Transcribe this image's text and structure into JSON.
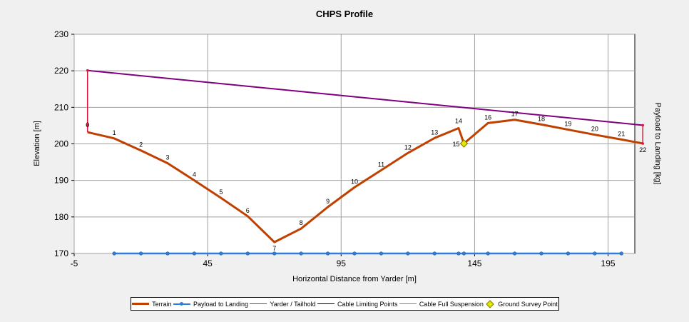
{
  "chart_data": {
    "type": "line",
    "title": "CHPS Profile",
    "xlabel": "Horizontal Distance from Yarder [m]",
    "ylabel": "Elevation [m]",
    "y2label": "Payload to Landing [kg]",
    "xlim": [
      -5,
      205
    ],
    "ylim": [
      170,
      230
    ],
    "xticks": [
      -5,
      45,
      95,
      145,
      195
    ],
    "yticks": [
      170,
      180,
      190,
      200,
      210,
      220,
      230
    ],
    "grid": true,
    "legend_position": "bottom",
    "colors": {
      "terrain": "#c04000",
      "payload": "#2f7fd6",
      "yarder_tailhold": "#dc143c",
      "cable_limiting": "#000000",
      "cable_full_suspension": "#808080",
      "ground_survey": "#e6e600",
      "cable_line": "#800080",
      "grid": "#a0a0a0",
      "plot_bg": "#ffffff"
    },
    "series": [
      {
        "name": "Terrain",
        "x": [
          0,
          10,
          20,
          30,
          40,
          50,
          60,
          70,
          80,
          90,
          100,
          110,
          120,
          130,
          139,
          141,
          150,
          160,
          170,
          180,
          190,
          200,
          208
        ],
        "y": [
          203.2,
          201.5,
          198.2,
          194.7,
          190.0,
          185.2,
          180.2,
          173.1,
          176.8,
          182.7,
          188.1,
          192.8,
          197.5,
          201.6,
          204.3,
          200.1,
          205.7,
          206.6,
          205.3,
          203.9,
          202.5,
          201.2,
          200.1
        ],
        "labels": [
          "0",
          "1",
          "2",
          "3",
          "4",
          "5",
          "6",
          "7",
          "8",
          "9",
          "10",
          "11",
          "12",
          "13",
          "14",
          "15",
          "16",
          "17",
          "18",
          "19",
          "20",
          "21",
          "22"
        ]
      },
      {
        "name": "Payload to Landing",
        "x": [
          10,
          20,
          30,
          40,
          50,
          60,
          70,
          80,
          90,
          100,
          110,
          120,
          130,
          139,
          141,
          150,
          160,
          170,
          180,
          190,
          200
        ],
        "y": [
          170,
          170,
          170,
          170,
          170,
          170,
          170,
          170,
          170,
          170,
          170,
          170,
          170,
          170,
          170,
          170,
          170,
          170,
          170,
          170,
          170
        ]
      },
      {
        "name": "Yarder / Tailhold",
        "x": [
          0,
          0,
          208,
          208
        ],
        "y": [
          203.2,
          220.1,
          205.1,
          200.1
        ]
      },
      {
        "name": "Cable Limiting Points",
        "x": [],
        "y": []
      },
      {
        "name": "Cable Full Suspension",
        "x": [],
        "y": []
      },
      {
        "name": "Ground Survey Point",
        "x": [
          141
        ],
        "y": [
          200.1
        ]
      }
    ],
    "cable": {
      "x": [
        0,
        208
      ],
      "y": [
        220.1,
        205.1
      ]
    },
    "endpoint_markers": {
      "x": [
        0,
        0,
        208,
        208
      ],
      "y": [
        220.1,
        205.1,
        205.1,
        200.1
      ]
    }
  }
}
